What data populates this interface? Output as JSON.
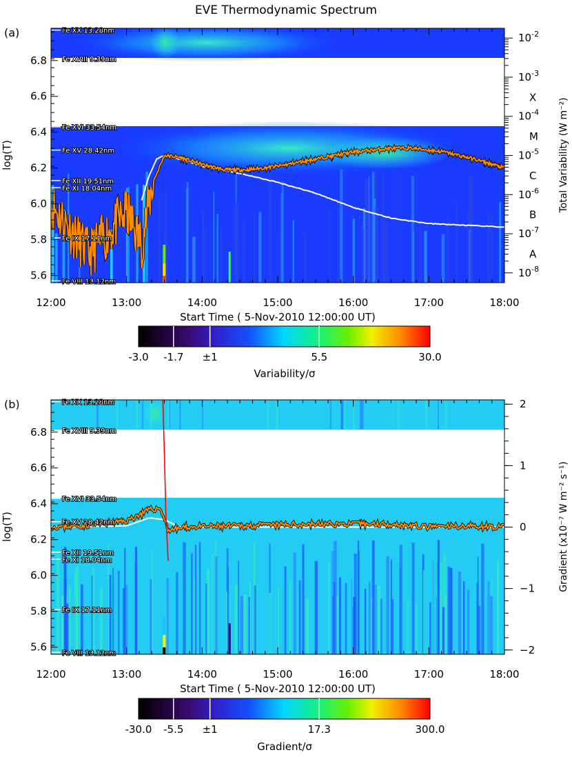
{
  "title": "EVE Thermodynamic Spectrum",
  "chart_data": [
    {
      "panel": "(a)",
      "type": "heatmap",
      "xlabel": "Start Time ( 5-Nov-2010 12:00:00 UT)",
      "ylabel": "log(T)",
      "y2label": "Total Variability (W m⁻²)",
      "x_ticks": [
        "12:00",
        "13:00",
        "14:00",
        "15:00",
        "16:00",
        "17:00",
        "18:00"
      ],
      "xlim_hours": [
        12,
        18
      ],
      "ylim": [
        5.56,
        6.98
      ],
      "y_ticks": [
        "5.6",
        "5.8",
        "6.0",
        "6.2",
        "6.4",
        "6.6",
        "6.8"
      ],
      "y2_log_range": [
        -8.25,
        -1.75
      ],
      "y2_ticks": [
        {
          "value": -8,
          "mantissa": "10",
          "exp": "-8"
        },
        {
          "value": -7,
          "mantissa": "10",
          "exp": "-7"
        },
        {
          "value": -6,
          "mantissa": "10",
          "exp": "-6"
        },
        {
          "value": -5,
          "mantissa": "10",
          "exp": "-5"
        },
        {
          "value": -4,
          "mantissa": "10",
          "exp": "-4"
        },
        {
          "value": -3,
          "mantissa": "10",
          "exp": "-3"
        },
        {
          "value": -2,
          "mantissa": "10",
          "exp": "-2"
        }
      ],
      "flare_classes": [
        {
          "label": "A",
          "log_flux": -7.5
        },
        {
          "label": "B",
          "log_flux": -6.5
        },
        {
          "label": "C",
          "log_flux": -5.5
        },
        {
          "label": "M",
          "log_flux": -4.5
        },
        {
          "label": "X",
          "log_flux": -3.5
        }
      ],
      "gap_logT": [
        6.43,
        6.81
      ],
      "lines": [
        {
          "label": "Fe XX 13.28nm",
          "logT": 6.97
        },
        {
          "label": "Fe XVIII 9.39nm",
          "logT": 6.81
        },
        {
          "label": "Fe XVI 33.54nm",
          "logT": 6.43
        },
        {
          "label": "Fe XV 28.42nm",
          "logT": 6.3
        },
        {
          "label": "Fe XII 19.51nm",
          "logT": 6.13
        },
        {
          "label": "Fe XI 18.04nm",
          "logT": 6.09
        },
        {
          "label": "Fe IX 17.11nm",
          "logT": 5.81
        },
        {
          "label": "Fe VIII 13.12nm",
          "logT": 5.57
        }
      ],
      "colorbar": {
        "label": "Variability/σ",
        "tick_labels": [
          "-3.0",
          "-1.7",
          "±1",
          "5.5",
          "30.0"
        ]
      },
      "series": [
        {
          "name": "",
          "color": "#ff8c00",
          "x": [
            12.0,
            12.5,
            13.0,
            13.2,
            13.35,
            13.5,
            13.7,
            14.0,
            14.3,
            14.6,
            15.0,
            15.5,
            16.0,
            16.5,
            16.8,
            17.2,
            17.6,
            18.0
          ],
          "values": [
            6.0,
            5.72,
            5.95,
            5.78,
            6.12,
            6.27,
            6.26,
            6.22,
            6.19,
            6.19,
            6.21,
            6.25,
            6.29,
            6.31,
            6.31,
            6.29,
            6.25,
            6.2
          ]
        },
        {
          "name": "",
          "color": "#ffffff",
          "x": [
            13.2,
            13.3,
            13.4,
            13.5,
            13.7,
            14.0,
            14.5,
            15.0,
            15.5,
            16.0,
            16.5,
            17.0,
            17.5,
            18.0
          ],
          "values": [
            6.02,
            6.16,
            6.25,
            6.27,
            6.25,
            6.21,
            6.17,
            6.12,
            6.06,
            5.98,
            5.92,
            5.89,
            5.88,
            5.87
          ]
        }
      ]
    },
    {
      "panel": "(b)",
      "type": "heatmap",
      "xlabel": "Start Time ( 5-Nov-2010 12:00:00 UT)",
      "ylabel": "log(T)",
      "y2label": "Gradient (x10⁻⁷ W m⁻² s⁻¹)",
      "x_ticks": [
        "12:00",
        "13:00",
        "14:00",
        "15:00",
        "16:00",
        "17:00",
        "18:00"
      ],
      "xlim_hours": [
        12,
        18
      ],
      "ylim": [
        5.56,
        6.98
      ],
      "y_ticks": [
        "5.6",
        "5.8",
        "6.0",
        "6.2",
        "6.4",
        "6.6",
        "6.8"
      ],
      "y2lim": [
        -2.07,
        2.07
      ],
      "y2_ticks": [
        "-2",
        "-1",
        "0",
        "1",
        "2"
      ],
      "gap_logT": [
        6.43,
        6.81
      ],
      "lines": [
        {
          "label": "Fe XX 13.28nm",
          "logT": 6.97
        },
        {
          "label": "Fe XVIII 9.39nm",
          "logT": 6.81
        },
        {
          "label": "Fe XVI 33.54nm",
          "logT": 6.43
        },
        {
          "label": "Fe XV 28.42nm",
          "logT": 6.3
        },
        {
          "label": "Fe XII 19.51nm",
          "logT": 6.13
        },
        {
          "label": "Fe XI 18.04nm",
          "logT": 6.09
        },
        {
          "label": "Fe IX 17.11nm",
          "logT": 5.81
        },
        {
          "label": "Fe VIII 13.12nm",
          "logT": 5.57
        }
      ],
      "colorbar": {
        "label": "Gradient/σ",
        "tick_labels": [
          "-30.0",
          "-5.5",
          "±1",
          "17.3",
          "300.0"
        ]
      },
      "series": [
        {
          "name": "",
          "color": "#ff8c00",
          "x": [
            12.0,
            12.5,
            13.0,
            13.3,
            13.45,
            13.55,
            13.8,
            14.5,
            15.5,
            16.5,
            17.0,
            17.5,
            18.0
          ],
          "values": [
            0.0,
            0.03,
            0.1,
            0.28,
            0.3,
            -0.05,
            0.0,
            0.02,
            0.05,
            0.05,
            0.0,
            0.02,
            0.0
          ]
        },
        {
          "name": "",
          "color": "#ff0000",
          "x": [
            13.48,
            13.5,
            13.52,
            13.55
          ],
          "values": [
            2.1,
            1.2,
            0.2,
            -0.55
          ]
        },
        {
          "name": "",
          "color": "#ffffff",
          "x": [
            12.0,
            13.0,
            13.3,
            13.5,
            13.7,
            18.0
          ],
          "values": [
            0.0,
            0.02,
            0.15,
            0.12,
            0.0,
            0.0
          ]
        }
      ]
    }
  ]
}
